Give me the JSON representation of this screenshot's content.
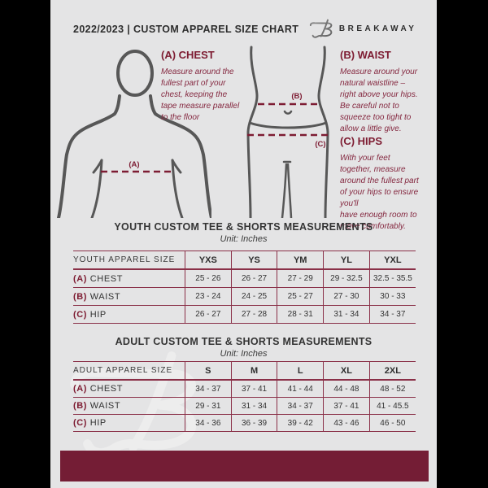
{
  "colors": {
    "accent_maroon": "#741d35",
    "table_line": "#8a3048",
    "heading_maroon": "#7d1b31",
    "body_text_maroon": "#84273f",
    "ink": "#2d2d2d",
    "page_bg": "#e4e4e5",
    "figure_stroke": "#575757"
  },
  "header": {
    "title": "2022/2023  |  CUSTOM APPAREL SIZE CHART",
    "brand": "BREAKAWAY"
  },
  "measurement_guide": {
    "chest": {
      "heading": "(A) CHEST",
      "marker": "(A)",
      "body": "Measure around the\nfullest part of your\nchest, keeping the\ntape measure parallel\nto the floor"
    },
    "waist": {
      "heading": "(B) WAIST",
      "marker": "(B)",
      "body": "Measure around your\nnatural waistline –\nright above your hips.\nBe careful not to\nsqueeze too tight to\nallow a little give."
    },
    "hips": {
      "heading": "(C) HIPS",
      "marker": "(C)",
      "body": "With your feet\ntogether, measure\naround the fullest part\nof your hips to ensure\nyou'll\nhave enough room to\nmove comfortably."
    }
  },
  "tables": {
    "youth": {
      "title": "YOUTH CUSTOM TEE & SHORTS MEASUREMENTS",
      "unit": "Unit: Inches",
      "header": [
        "YOUTH APPAREL SIZE",
        "YXS",
        "YS",
        "YM",
        "YL",
        "YXL"
      ],
      "rows": [
        {
          "key": "(A)",
          "label": "CHEST",
          "values": [
            "25 - 26",
            "26 - 27",
            "27 - 29",
            "29 - 32.5",
            "32.5 - 35.5"
          ]
        },
        {
          "key": "(B)",
          "label": "WAIST",
          "values": [
            "23 - 24",
            "24 - 25",
            "25 - 27",
            "27 - 30",
            "30 - 33"
          ]
        },
        {
          "key": "(C)",
          "label": "HIP",
          "values": [
            "26 - 27",
            "27 - 28",
            "28 - 31",
            "31 - 34",
            "34 - 37"
          ]
        }
      ]
    },
    "adult": {
      "title": "ADULT CUSTOM TEE & SHORTS MEASUREMENTS",
      "unit": "Unit: Inches",
      "header": [
        "ADULT APPAREL SIZE",
        "S",
        "M",
        "L",
        "XL",
        "2XL"
      ],
      "rows": [
        {
          "key": "(A)",
          "label": "CHEST",
          "values": [
            "34 - 37",
            "37 - 41",
            "41 - 44",
            "44 - 48",
            "48 - 52"
          ]
        },
        {
          "key": "(B)",
          "label": "WAIST",
          "values": [
            "29 - 31",
            "31 - 34",
            "34 - 37",
            "37 - 41",
            "41 - 45.5"
          ]
        },
        {
          "key": "(C)",
          "label": "HIP",
          "values": [
            "34 - 36",
            "36 - 39",
            "39 - 42",
            "43 - 46",
            "46 - 50"
          ]
        }
      ]
    }
  }
}
